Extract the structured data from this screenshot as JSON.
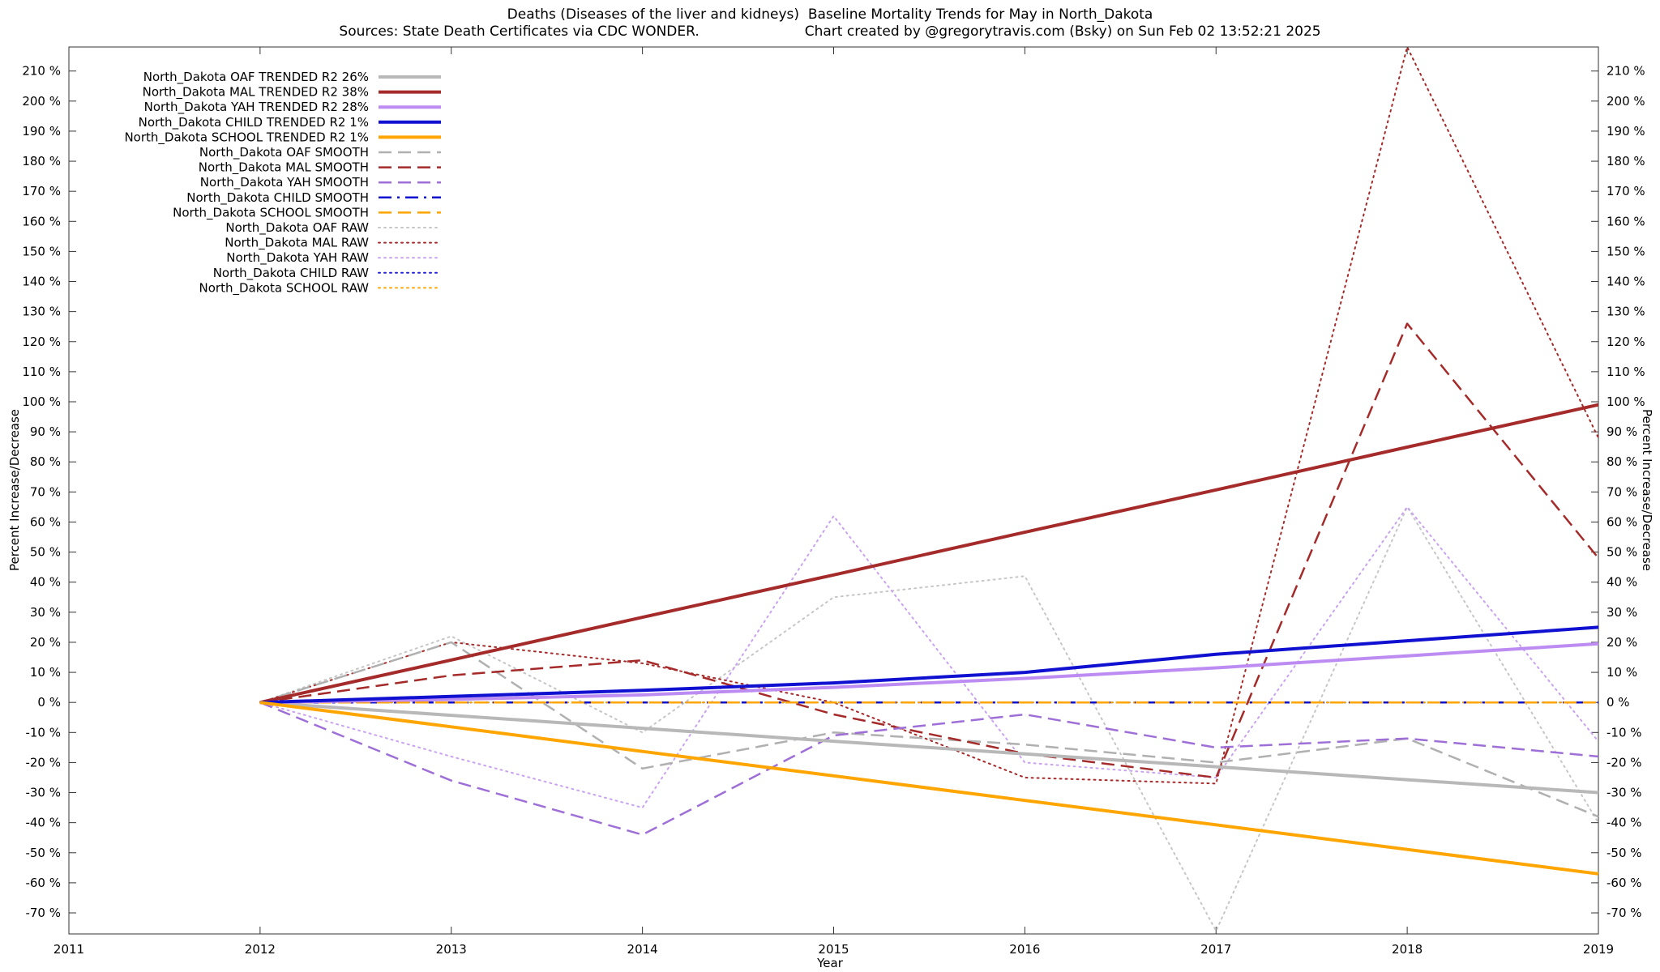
{
  "header": {
    "title": "Deaths (Diseases of the liver and kidneys)  Baseline Mortality Trends for May in North_Dakota",
    "sources": "Sources: State Death Certificates via CDC WONDER.",
    "credit": "Chart created by @gregorytravis.com (Bsky) on Sun Feb 02 13:52:21 2025"
  },
  "chart_data": {
    "type": "line",
    "title": "Deaths (Diseases of the liver and kidneys)  Baseline Mortality Trends for May in North_Dakota",
    "xlabel": "Year",
    "ylabel": "Percent Increase/Decrease",
    "xlim": [
      2011,
      2019
    ],
    "ylim": [
      -77,
      218
    ],
    "xticks": [
      2011,
      2012,
      2013,
      2014,
      2015,
      2016,
      2017,
      2018,
      2019
    ],
    "ytick_range": [
      -70,
      210
    ],
    "ytick_step": 10,
    "ytick_suffix": " %",
    "grid": false,
    "legend_position": "top-left",
    "x": [
      2012,
      2013,
      2014,
      2015,
      2016,
      2017,
      2018,
      2019
    ],
    "series": [
      {
        "id": "oaf-trended",
        "label": "North_Dakota OAF TRENDED R2  26%",
        "group": "TRENDED",
        "color": "#b8b8b8",
        "style": "solid",
        "width": 4,
        "values": [
          0,
          -4.3,
          -8.6,
          -12.9,
          -17.1,
          -21.4,
          -25.7,
          -30
        ]
      },
      {
        "id": "mal-trended",
        "label": "North_Dakota MAL TRENDED R2  38%",
        "group": "TRENDED",
        "color": "#a52a2a",
        "style": "solid",
        "width": 4,
        "values": [
          0,
          14.1,
          28.3,
          42.4,
          56.6,
          70.7,
          84.9,
          99
        ]
      },
      {
        "id": "yah-trended",
        "label": "North_Dakota YAH TRENDED R2  28%",
        "group": "TRENDED",
        "color": "#bd8cf2",
        "style": "solid",
        "width": 4,
        "values": [
          0,
          1,
          2.5,
          5,
          8,
          11.5,
          15.5,
          19.5
        ]
      },
      {
        "id": "child-trended",
        "label": "North_Dakota CHILD TRENDED R2   1%",
        "group": "TRENDED",
        "color": "#1010d0",
        "style": "solid",
        "width": 4,
        "values": [
          0,
          2,
          4,
          6.5,
          10,
          16,
          20.5,
          25
        ]
      },
      {
        "id": "school-trended",
        "label": "North_Dakota SCHOOL TRENDED R2   1%",
        "group": "TRENDED",
        "color": "#ffa500",
        "style": "solid",
        "width": 4,
        "values": [
          0,
          -8.1,
          -16.3,
          -24.4,
          -32.6,
          -40.7,
          -48.9,
          -57
        ]
      },
      {
        "id": "oaf-smooth",
        "label": "North_Dakota OAF SMOOTH",
        "group": "SMOOTH",
        "color": "#b0b0b0",
        "style": "dashed",
        "width": 2.5,
        "values": [
          0,
          20,
          -22,
          -10,
          -14,
          -20,
          -12,
          -38
        ]
      },
      {
        "id": "mal-smooth",
        "label": "North_Dakota MAL SMOOTH",
        "group": "SMOOTH",
        "color": "#a52a2a",
        "style": "dashed",
        "width": 2.5,
        "values": [
          0,
          9,
          14,
          -4,
          -17,
          -25,
          126,
          48
        ]
      },
      {
        "id": "yah-smooth",
        "label": "North_Dakota YAH SMOOTH",
        "group": "SMOOTH",
        "color": "#9f6fd8",
        "style": "dashed",
        "width": 2.5,
        "values": [
          0,
          -26,
          -44,
          -11,
          -4,
          -15,
          -12,
          -18
        ]
      },
      {
        "id": "child-smooth",
        "label": "North_Dakota CHILD SMOOTH",
        "group": "SMOOTH",
        "color": "#1010d0",
        "style": "dashdot",
        "width": 2.5,
        "values": [
          0,
          0,
          0,
          0,
          0,
          0,
          0,
          0
        ]
      },
      {
        "id": "school-smooth",
        "label": "North_Dakota SCHOOL SMOOTH",
        "group": "SMOOTH",
        "color": "#ffa500",
        "style": "dashed",
        "width": 2.5,
        "values": [
          0,
          0,
          0,
          0,
          0,
          0,
          0,
          0
        ]
      },
      {
        "id": "oaf-raw",
        "label": "North_Dakota OAF RAW",
        "group": "RAW",
        "color": "#c6c6c6",
        "style": "dotted",
        "width": 2,
        "values": [
          0,
          22,
          -10,
          35,
          42,
          -76,
          65,
          -40
        ]
      },
      {
        "id": "mal-raw",
        "label": "North_Dakota MAL RAW",
        "group": "RAW",
        "color": "#a52a2a",
        "style": "dotted",
        "width": 2,
        "values": [
          0,
          20,
          13,
          0,
          -25,
          -27,
          218,
          88
        ]
      },
      {
        "id": "yah-raw",
        "label": "North_Dakota YAH RAW",
        "group": "RAW",
        "color": "#c9a2f0",
        "style": "dotted",
        "width": 2,
        "values": [
          0,
          -18,
          -35,
          62,
          -20,
          -25,
          65,
          -13
        ]
      },
      {
        "id": "child-raw",
        "label": "North_Dakota CHILD RAW",
        "group": "RAW",
        "color": "#2222e0",
        "style": "dotted",
        "width": 2,
        "values": [
          0,
          0,
          0,
          0,
          0,
          0,
          0,
          0
        ]
      },
      {
        "id": "school-raw",
        "label": "North_Dakota SCHOOL RAW",
        "group": "RAW",
        "color": "#ffa500",
        "style": "dotted",
        "width": 2,
        "values": [
          0,
          0,
          0,
          0,
          0,
          0,
          0,
          0
        ]
      }
    ]
  }
}
